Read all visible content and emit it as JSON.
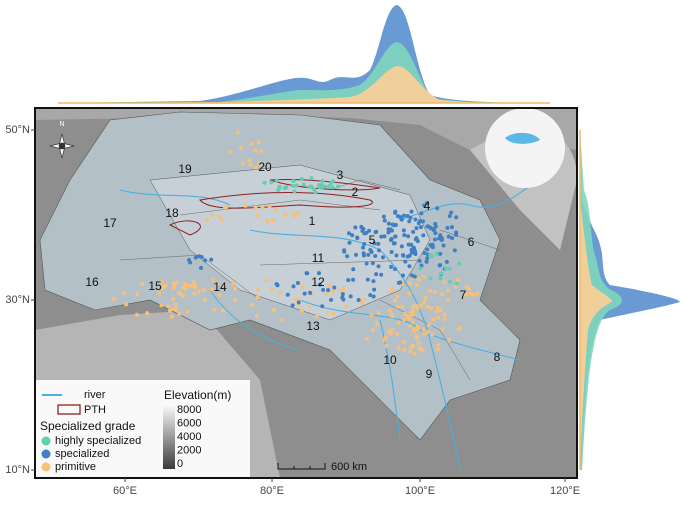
{
  "map": {
    "y_labels": [
      "50°N",
      "30°N",
      "10°N"
    ],
    "x_labels": [
      "60°E",
      "80°E",
      "100°E",
      "120°E"
    ],
    "regions": [
      "1",
      "2",
      "3",
      "4",
      "5",
      "6",
      "7",
      "8",
      "9",
      "10",
      "11",
      "12",
      "13",
      "14",
      "15",
      "16",
      "17",
      "18",
      "19",
      "20"
    ],
    "compass": "N",
    "scale_bar": "600 km"
  },
  "legend": {
    "river": "river",
    "pth": "PTH",
    "grade_title": "Specialized grade",
    "grades": [
      "highly specialized",
      "specialized",
      "primitive"
    ],
    "elevation_title": "Elevation(m)",
    "elevation_ticks": [
      8000,
      6000,
      4000,
      2000,
      0
    ]
  }
}
